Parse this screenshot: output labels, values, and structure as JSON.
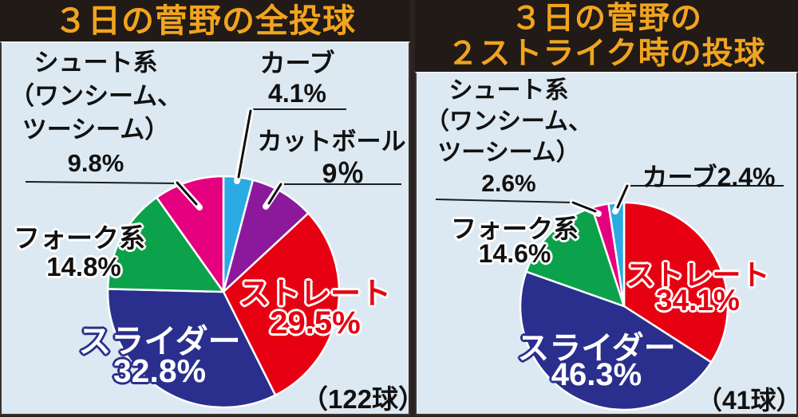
{
  "colors": {
    "panel_background": "#dde9f2",
    "title_bar_background": "#211a16",
    "title_text": "#f1a41f",
    "straight_red": "#e60012",
    "slider_navy": "#2a2f8d",
    "fork_green": "#0ca24b",
    "shoot_pink": "#e5007f",
    "curve_lightblue": "#2aabe3",
    "cutball_purple": "#8c199c"
  },
  "left_panel": {
    "title": "３日の菅野の全投球",
    "count_note": "（122球）",
    "labels": {
      "shoot": {
        "lines": [
          "シュート系",
          "（ワンシーム、",
          "ツーシーム）",
          "9.8%"
        ]
      },
      "curve": {
        "name": "カーブ",
        "pct": "4.1%"
      },
      "cutball": {
        "name": "カットボール",
        "pct": "9％"
      },
      "fork": {
        "name": "フォーク系",
        "pct": "14.8%"
      },
      "straight": {
        "name": "ストレート",
        "pct": "29.5%"
      },
      "slider": {
        "name": "スライダー",
        "pct": "32.8%"
      }
    }
  },
  "right_panel": {
    "title_line1": "３日の菅野の",
    "title_line2": "２ストライク時の投球",
    "count_note": "（41球）",
    "labels": {
      "shoot": {
        "lines": [
          "シュート系",
          "（ワンシーム、",
          "ツーシーム）",
          "2.6%"
        ]
      },
      "curve": {
        "name_pct": "カーブ2.4%"
      },
      "fork": {
        "name": "フォーク系",
        "pct": "14.6%"
      },
      "straight": {
        "name": "ストレート",
        "pct": "34.1%"
      },
      "slider": {
        "name": "スライダー",
        "pct": "46.3%"
      }
    }
  },
  "chart_data": [
    {
      "type": "pie",
      "title": "３日の菅野の全投球",
      "total_pitches": 122,
      "total_label": "（122球）",
      "start_angle_deg": 0,
      "direction": "clockwise",
      "unit": "%",
      "slices": [
        {
          "label": "カーブ",
          "value": 4.1,
          "color": "#2aabe3"
        },
        {
          "label": "カットボール",
          "value": 9.0,
          "color": "#8c199c"
        },
        {
          "label": "ストレート",
          "value": 29.5,
          "color": "#e60012"
        },
        {
          "label": "スライダー",
          "value": 32.8,
          "color": "#2a2f8d"
        },
        {
          "label": "フォーク系",
          "value": 14.8,
          "color": "#0ca24b"
        },
        {
          "label": "シュート系（ワンシーム、ツーシーム）",
          "value": 9.8,
          "color": "#e5007f"
        }
      ]
    },
    {
      "type": "pie",
      "title": "３日の菅野の２ストライク時の投球",
      "total_pitches": 41,
      "total_label": "（41球）",
      "start_angle_deg": 0,
      "direction": "clockwise",
      "unit": "%",
      "slices": [
        {
          "label": "ストレート",
          "value": 34.1,
          "color": "#e60012"
        },
        {
          "label": "スライダー",
          "value": 46.3,
          "color": "#2a2f8d"
        },
        {
          "label": "フォーク系",
          "value": 14.6,
          "color": "#0ca24b"
        },
        {
          "label": "シュート系（ワンシーム、ツーシーム）",
          "value": 2.6,
          "color": "#e5007f"
        },
        {
          "label": "カーブ",
          "value": 2.4,
          "color": "#2aabe3"
        }
      ]
    }
  ]
}
